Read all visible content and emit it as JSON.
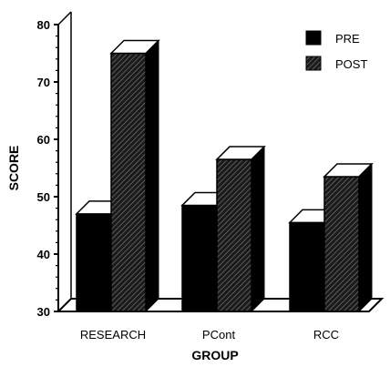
{
  "chart_data": {
    "type": "bar",
    "style": "3d",
    "xlabel": "GROUP",
    "ylabel": "SCORE",
    "ylim": [
      30,
      80
    ],
    "yticks": [
      30,
      40,
      50,
      60,
      70,
      80
    ],
    "categories": [
      "RESEARCH",
      "PCont",
      "RCC"
    ],
    "series": [
      {
        "name": "PRE",
        "values": [
          47,
          48.5,
          45.5
        ],
        "fill": "solid",
        "color": "#000000"
      },
      {
        "name": "POST",
        "values": [
          75,
          56.5,
          53.5
        ],
        "fill": "hatched",
        "color": "#000000"
      }
    ],
    "legend_position": "top-right",
    "grid": false
  }
}
